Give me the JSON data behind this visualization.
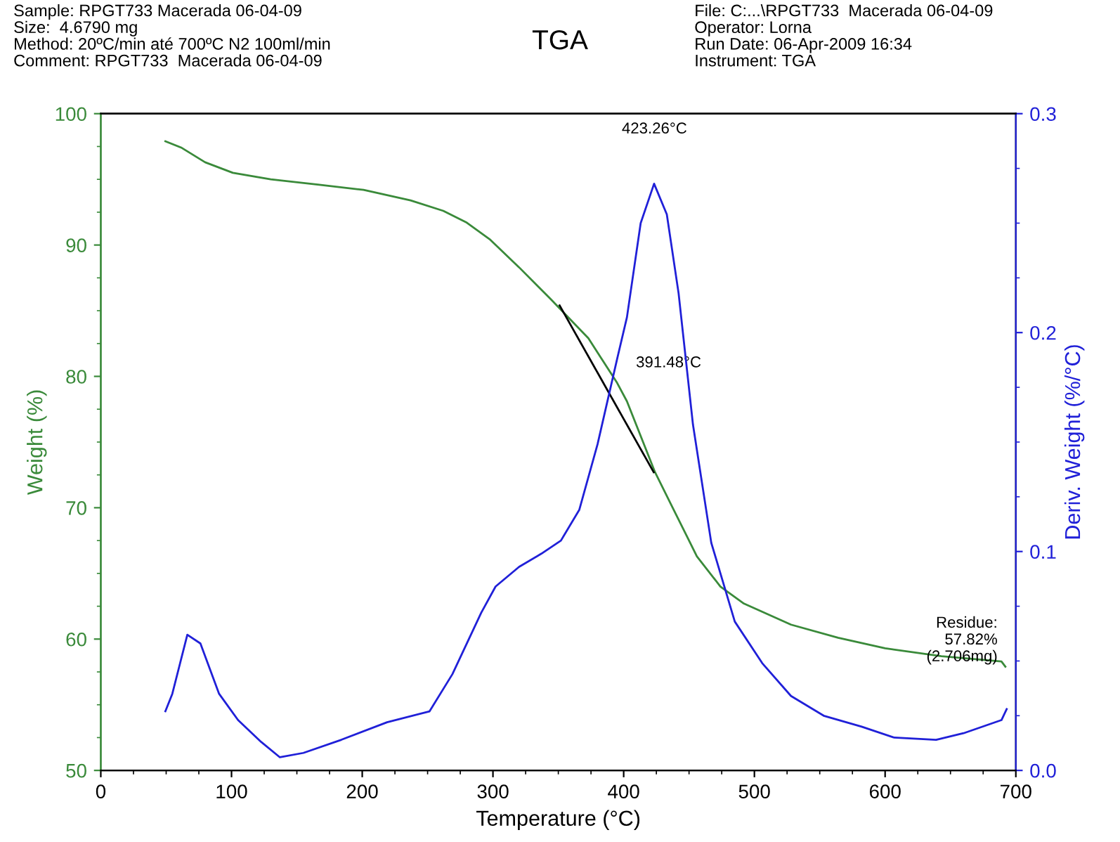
{
  "chart_data": {
    "type": "line",
    "title": "TGA",
    "xlabel": "Temperature (°C)",
    "ylabel": "Weight (%)",
    "y2label": "Deriv. Weight (%/°C)",
    "xlim": [
      0,
      700
    ],
    "xticks": [
      0,
      100,
      200,
      300,
      400,
      500,
      600,
      700
    ],
    "ylim": [
      50,
      100
    ],
    "yticks": [
      50,
      60,
      70,
      80,
      90,
      100
    ],
    "y2lim": [
      0,
      0.3
    ],
    "y2ticks": [
      {
        "value": 0,
        "label": "0.0"
      },
      {
        "value": 0.1,
        "label": "0.1"
      },
      {
        "value": 0.2,
        "label": "0.2"
      },
      {
        "value": 0.3,
        "label": "0.3"
      }
    ],
    "grid": false,
    "legend": false,
    "marker": "none",
    "line_style": "solid",
    "series": [
      {
        "color": "#3a8a3a",
        "x": [
          49.4,
          61.9,
          79.8,
          101,
          130,
          166,
          201,
          237,
          262,
          280,
          298,
          320,
          344,
          373,
          395,
          402.5,
          424,
          438,
          456,
          474,
          492,
          528,
          564,
          600,
          643,
          689,
          692
        ],
        "values": [
          97.9,
          97.4,
          96.3,
          95.5,
          95.0,
          94.6,
          94.2,
          93.4,
          92.6,
          91.7,
          90.4,
          88.3,
          85.9,
          82.9,
          79.5,
          78.1,
          72.7,
          69.9,
          66.3,
          64.0,
          62.7,
          61.1,
          60.1,
          59.3,
          58.7,
          58.3,
          57.9
        ]
      },
      {
        "color": "#2020d8",
        "axis": "y2",
        "x": [
          49.4,
          54.7,
          66.2,
          76.2,
          90.5,
          105,
          122.7,
          137,
          155,
          184,
          219,
          251.5,
          269,
          291,
          302,
          320,
          337,
          352,
          366,
          380,
          395,
          402.5,
          413,
          423.26,
          433,
          442,
          453,
          467,
          485,
          506,
          528,
          553,
          582,
          607,
          639,
          660,
          689,
          693
        ],
        "values": [
          0.027,
          0.035,
          0.062,
          0.058,
          0.035,
          0.023,
          0.013,
          0.006,
          0.008,
          0.014,
          0.022,
          0.027,
          0.044,
          0.072,
          0.084,
          0.093,
          0.099,
          0.105,
          0.119,
          0.149,
          0.188,
          0.207,
          0.25,
          0.268,
          0.254,
          0.218,
          0.158,
          0.104,
          0.068,
          0.049,
          0.034,
          0.025,
          0.02,
          0.015,
          0.014,
          0.017,
          0.023,
          0.028
        ]
      },
      {
        "color": "#000000",
        "x": [
          351,
          423
        ],
        "values": [
          85.4,
          72.7
        ]
      }
    ],
    "annotations": [
      "Sample: RPGT733 Macerada 06-04-09\nSize:  4.6790 mg\nMethod: 20ºC/min até 700ºC N2 100ml/min\nComment: RPGT733  Macerada 06-04-09",
      "File: C:...\\RPGT733  Macerada 06-04-09\nOperator: Lorna\nRun Date: 06-Apr-2009 16:34\nInstrument: TGA",
      "423.26°C",
      {
        "text": "391.48°C",
        "x": 391.48,
        "y": 80.0
      },
      {
        "text": "Residue:\n57.82%\n(2.706mg)",
        "x": 692,
        "y": 57.82
      }
    ]
  }
}
